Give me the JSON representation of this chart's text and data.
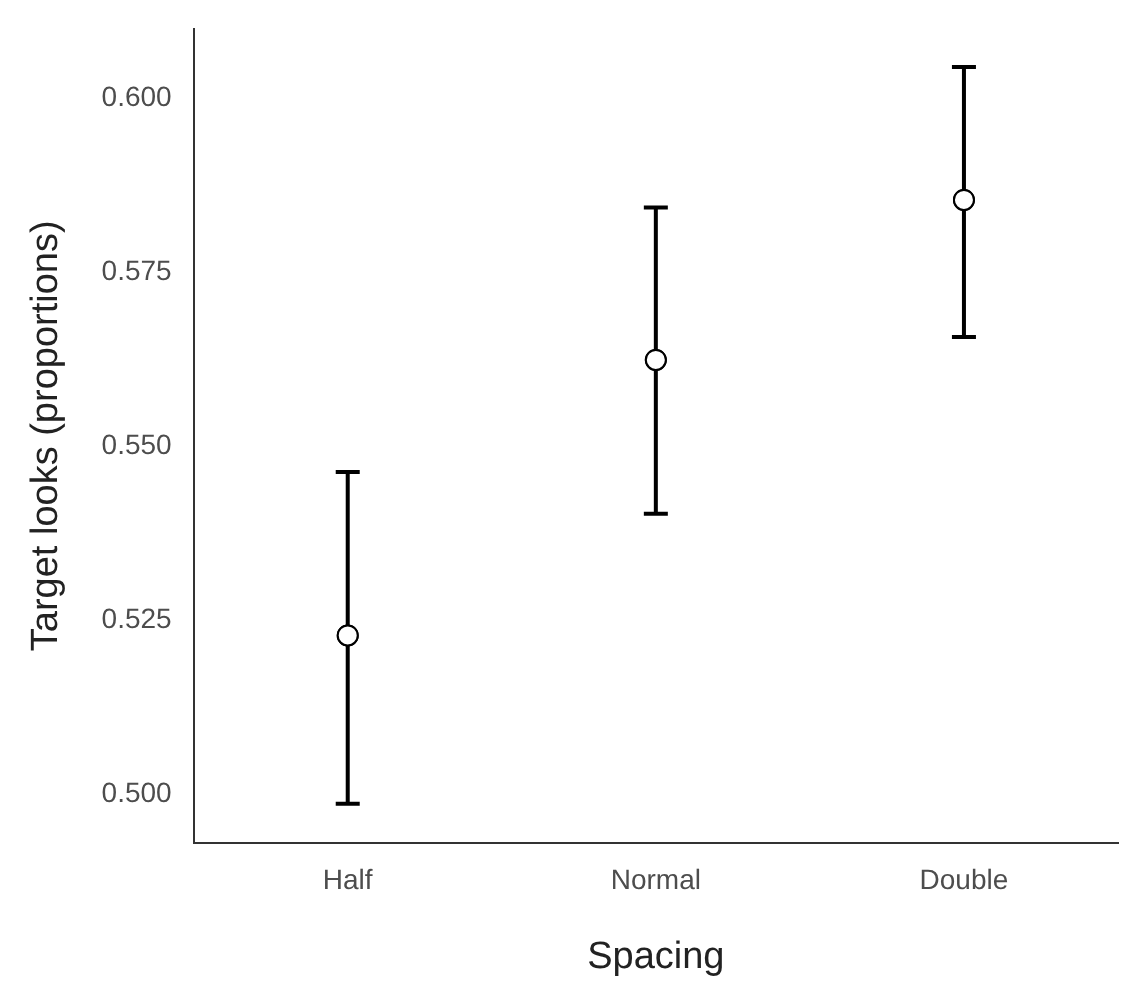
{
  "chart_data": {
    "type": "scatter",
    "xlabel": "Spacing",
    "ylabel": "Target looks (proportions)",
    "categories": [
      "Half",
      "Normal",
      "Double"
    ],
    "values": [
      0.5228,
      0.5624,
      0.5854
    ],
    "errors": [
      [
        0.4986,
        0.5463
      ],
      [
        0.5403,
        0.5843
      ],
      [
        0.5657,
        0.6045
      ]
    ],
    "color": "#000000",
    "marker": "circle",
    "grid": false,
    "legend": false,
    "ylim": [
      0.493,
      0.61
    ],
    "yticks": [
      {
        "value": 0.5,
        "label": "0.500"
      },
      {
        "value": 0.525,
        "label": "0.525"
      },
      {
        "value": 0.55,
        "label": "0.550"
      },
      {
        "value": 0.575,
        "label": "0.575"
      },
      {
        "value": 0.6,
        "label": "0.600"
      }
    ]
  }
}
